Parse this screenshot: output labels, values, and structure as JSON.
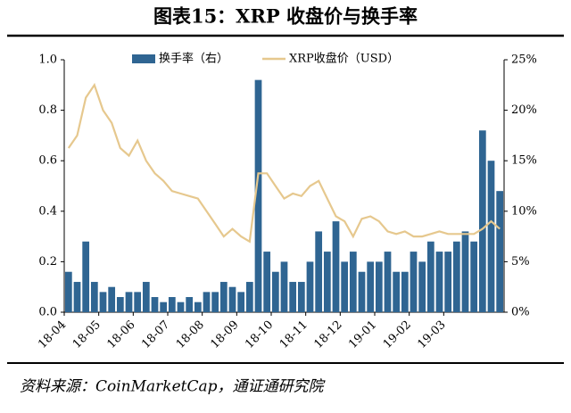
{
  "chart_data": {
    "type": "combo",
    "title": "图表15：XRP 收盘价与换手率",
    "source": "资料来源：CoinMarketCap，通证通研究院",
    "categories": [
      "18-04",
      null,
      null,
      null,
      "18-05",
      null,
      null,
      null,
      "18-06",
      null,
      null,
      null,
      "18-07",
      null,
      null,
      null,
      "18-08",
      null,
      null,
      null,
      "18-09",
      null,
      null,
      null,
      "18-10",
      null,
      null,
      null,
      "18-11",
      null,
      null,
      null,
      "18-12",
      null,
      null,
      null,
      "19-01",
      null,
      null,
      null,
      "19-02",
      null,
      null,
      null,
      "19-03",
      null,
      null,
      null,
      null,
      null,
      null
    ],
    "series": [
      {
        "name": "换手率（右）",
        "type": "bar",
        "axis": "y2",
        "color": "#2f6592",
        "values": [
          4,
          3,
          7,
          3,
          2,
          2.5,
          1.5,
          2,
          2,
          3,
          1.5,
          1,
          1.5,
          1,
          1.5,
          1,
          2,
          2,
          3,
          2.5,
          2,
          3,
          23,
          6,
          4,
          5,
          3,
          3,
          5,
          8,
          6,
          9,
          5,
          6,
          4,
          5,
          5,
          6,
          4,
          4,
          6,
          5,
          7,
          6,
          6,
          7,
          8,
          7,
          18,
          15,
          12
        ]
      },
      {
        "name": "XRP收盘价（USD）",
        "type": "line",
        "color": "#e6c88e",
        "values": [
          0.65,
          0.7,
          0.85,
          0.9,
          0.8,
          0.75,
          0.65,
          0.62,
          0.68,
          0.6,
          0.55,
          0.52,
          0.48,
          0.47,
          0.46,
          0.45,
          0.4,
          0.35,
          0.3,
          0.33,
          0.3,
          0.28,
          0.55,
          0.55,
          0.5,
          0.45,
          0.47,
          0.46,
          0.5,
          0.52,
          0.45,
          0.38,
          0.36,
          0.3,
          0.37,
          0.38,
          0.36,
          0.32,
          0.31,
          0.32,
          0.3,
          0.3,
          0.31,
          0.32,
          0.31,
          0.31,
          0.31,
          0.31,
          0.33,
          0.36,
          0.33
        ]
      }
    ],
    "ylim": [
      0,
      1
    ],
    "yticks": [
      {
        "value": 0,
        "label": "0.0"
      },
      0.2,
      0.4,
      0.6,
      0.8,
      {
        "value": 1,
        "label": "1.0"
      }
    ],
    "y2lim": [
      0,
      25
    ],
    "y2ticks": [
      {
        "value": 0,
        "label": "0%"
      },
      {
        "value": 5,
        "label": "5%"
      },
      {
        "value": 10,
        "label": "10%"
      },
      {
        "value": 15,
        "label": "15%"
      },
      {
        "value": 20,
        "label": "20%"
      },
      {
        "value": 25,
        "label": "25%"
      }
    ]
  }
}
